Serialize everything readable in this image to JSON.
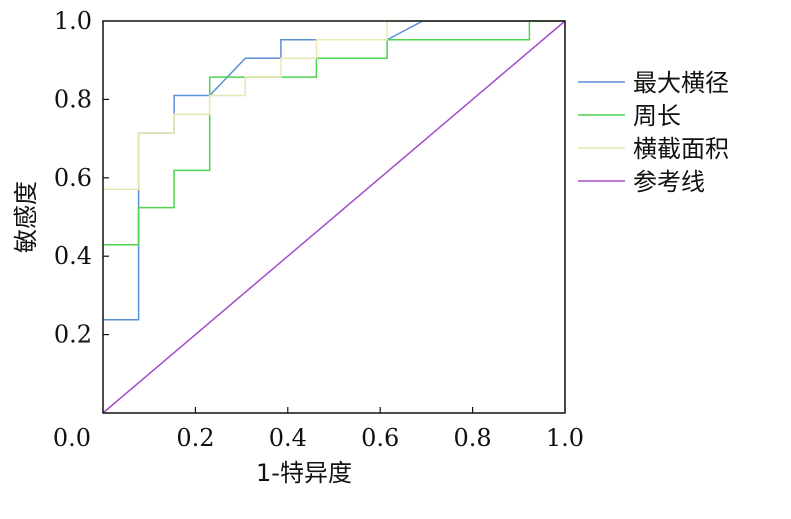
{
  "chart_data": {
    "type": "line",
    "title": "",
    "xlabel": "1-特异度",
    "ylabel": "敏感度",
    "xlim": [
      0,
      1
    ],
    "ylim": [
      0,
      1
    ],
    "x_ticks": [
      "0.0",
      "0.2",
      "0.4",
      "0.6",
      "0.8",
      "1.0"
    ],
    "y_ticks": [
      "0.0",
      "0.2",
      "0.4",
      "0.6",
      "0.8",
      "1.0"
    ],
    "grid": false,
    "legend_position": "right",
    "series": [
      {
        "name": "最大横径",
        "color": "#5b8fd6",
        "points": [
          [
            0,
            0.238
          ],
          [
            0.077,
            0.238
          ],
          [
            0.077,
            0.714
          ],
          [
            0.154,
            0.714
          ],
          [
            0.154,
            0.81
          ],
          [
            0.231,
            0.81
          ],
          [
            0.308,
            0.905
          ],
          [
            0.385,
            0.905
          ],
          [
            0.385,
            0.952
          ],
          [
            0.615,
            0.952
          ],
          [
            0.615,
            0.952
          ],
          [
            0.692,
            1.0
          ],
          [
            1,
            1
          ]
        ]
      },
      {
        "name": "周长",
        "color": "#4cd44c",
        "points": [
          [
            0,
            0.429
          ],
          [
            0.077,
            0.429
          ],
          [
            0.077,
            0.524
          ],
          [
            0.154,
            0.524
          ],
          [
            0.154,
            0.619
          ],
          [
            0.231,
            0.619
          ],
          [
            0.231,
            0.857
          ],
          [
            0.462,
            0.857
          ],
          [
            0.462,
            0.905
          ],
          [
            0.615,
            0.905
          ],
          [
            0.615,
            0.952
          ],
          [
            0.923,
            0.952
          ],
          [
            0.923,
            1.0
          ],
          [
            1,
            1
          ]
        ]
      },
      {
        "name": "横截面积",
        "color": "#e8e8b0",
        "points": [
          [
            0,
            0.571
          ],
          [
            0.077,
            0.571
          ],
          [
            0.077,
            0.714
          ],
          [
            0.154,
            0.714
          ],
          [
            0.154,
            0.762
          ],
          [
            0.231,
            0.762
          ],
          [
            0.231,
            0.81
          ],
          [
            0.308,
            0.81
          ],
          [
            0.308,
            0.857
          ],
          [
            0.385,
            0.857
          ],
          [
            0.385,
            0.905
          ],
          [
            0.462,
            0.905
          ],
          [
            0.462,
            0.952
          ],
          [
            0.615,
            0.952
          ],
          [
            0.615,
            1.0
          ],
          [
            1,
            1
          ]
        ]
      },
      {
        "name": "参考线",
        "color": "#a64dc9",
        "points": [
          [
            0,
            0
          ],
          [
            1,
            1
          ]
        ]
      }
    ]
  }
}
